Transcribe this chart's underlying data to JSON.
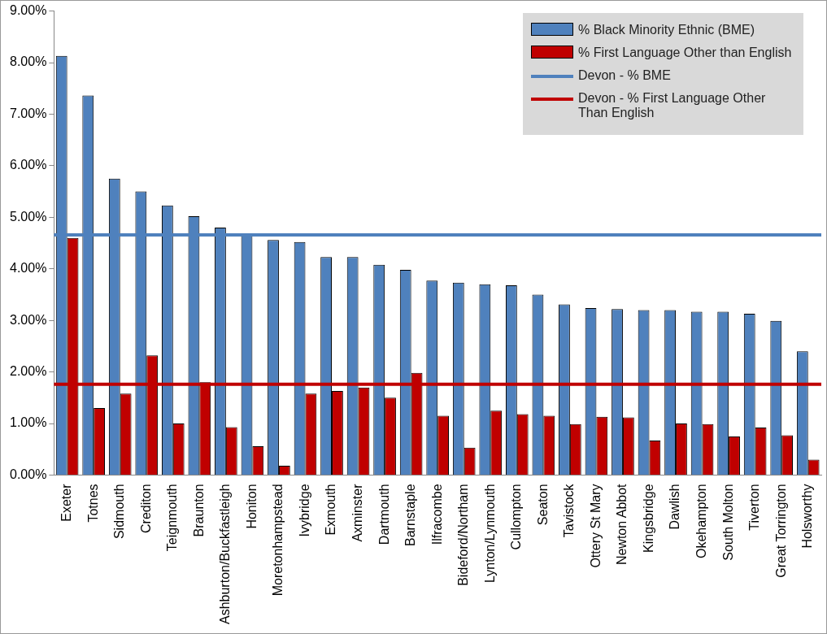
{
  "chart_data": {
    "type": "bar",
    "categories": [
      "Exeter",
      "Totnes",
      "Sidmouth",
      "Crediton",
      "Teignmouth",
      "Braunton",
      "Ashburton/Buckfastleigh",
      "Honiton",
      "Moretonhampstead",
      "Ivybridge",
      "Exmouth",
      "Axminster",
      "Dartmouth",
      "Barnstaple",
      "Ilfracombe",
      "Bideford/Northam",
      "Lynton/Lynmouth",
      "Cullompton",
      "Seaton",
      "Tavistock",
      "Ottery St Mary",
      "Newton Abbot",
      "Kingsbridge",
      "Dawlish",
      "Okehampton",
      "South Molton",
      "Tiverton",
      "Great Torrington",
      "Holsworthy"
    ],
    "series": [
      {
        "name": "% Black Minority Ethnic (BME)",
        "color": "#4f81bd",
        "values": [
          8.13,
          7.36,
          5.75,
          5.5,
          5.23,
          5.02,
          4.8,
          4.68,
          4.56,
          4.52,
          4.23,
          4.23,
          4.08,
          3.98,
          3.77,
          3.73,
          3.7,
          3.68,
          3.5,
          3.31,
          3.24,
          3.22,
          3.2,
          3.2,
          3.17,
          3.17,
          3.13,
          2.99,
          2.4
        ]
      },
      {
        "name": "% First Language Other than English",
        "color": "#c00000",
        "values": [
          4.6,
          1.3,
          1.58,
          2.32,
          1.0,
          1.8,
          0.93,
          0.56,
          0.18,
          1.58,
          1.63,
          1.7,
          1.5,
          1.98,
          1.15,
          0.53,
          1.25,
          1.18,
          1.15,
          0.99,
          1.13,
          1.12,
          0.67,
          1.0,
          0.99,
          0.75,
          0.92,
          0.77,
          0.3
        ]
      }
    ],
    "ref_lines": [
      {
        "axis": "y",
        "value": 4.66,
        "label": "Devon - % BME",
        "color": "#4f81bd"
      },
      {
        "axis": "y",
        "value": 1.76,
        "label": "Devon - % First Language Other Than English",
        "color": "#c00000"
      }
    ],
    "ylim": [
      0,
      9
    ],
    "yticks": [
      {
        "value": 0,
        "label": "0.00%"
      },
      {
        "value": 1,
        "label": "1.00%"
      },
      {
        "value": 2,
        "label": "2.00%"
      },
      {
        "value": 3,
        "label": "3.00%"
      },
      {
        "value": 4,
        "label": "4.00%"
      },
      {
        "value": 5,
        "label": "5.00%"
      },
      {
        "value": 6,
        "label": "6.00%"
      },
      {
        "value": 7,
        "label": "7.00%"
      },
      {
        "value": 8,
        "label": "8.00%"
      },
      {
        "value": 9,
        "label": "9.00%"
      }
    ],
    "grid": false,
    "legend": "top right"
  }
}
